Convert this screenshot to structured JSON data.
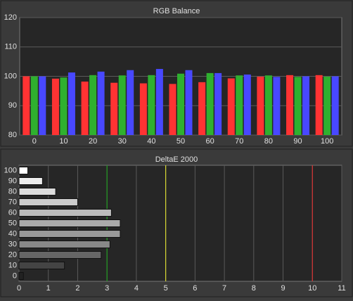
{
  "chart_data": [
    {
      "type": "grouped-bar",
      "title": "RGB Balance",
      "categories": [
        "0",
        "10",
        "20",
        "30",
        "40",
        "50",
        "60",
        "70",
        "80",
        "90",
        "100"
      ],
      "series": [
        {
          "color": "#ff3333",
          "values": [
            100,
            99.2,
            98.2,
            97.8,
            97.6,
            97.4,
            98.0,
            99.3,
            99.9,
            100.4,
            100.4
          ]
        },
        {
          "color": "#2fb02f",
          "values": [
            100,
            99.6,
            100.4,
            100.3,
            100.4,
            100.9,
            101.1,
            100.3,
            100.3,
            99.8,
            99.9
          ]
        },
        {
          "color": "#4848ff",
          "values": [
            100,
            101.3,
            101.6,
            102.1,
            102.5,
            102.1,
            101.1,
            100.6,
            99.8,
            100.0,
            100.0
          ]
        }
      ],
      "ylim": [
        80,
        120
      ],
      "yticks": [
        80,
        90,
        100,
        110,
        120
      ],
      "grid": true
    },
    {
      "type": "horizontal-bar",
      "title": "DeltaE 2000",
      "categories": [
        "100",
        "90",
        "80",
        "70",
        "60",
        "50",
        "40",
        "30",
        "20",
        "10",
        "0"
      ],
      "values": [
        0.3,
        0.8,
        1.25,
        2.0,
        3.15,
        3.45,
        3.45,
        3.1,
        2.8,
        1.55,
        0.15
      ],
      "colors": [
        "#ffffff",
        "#eeeeee",
        "#dddddd",
        "#cccccc",
        "#bbbbbb",
        "#aaaaaa",
        "#999999",
        "#888888",
        "#666666",
        "#444444",
        "#222222"
      ],
      "xlim": [
        0,
        11
      ],
      "xticks": [
        0,
        1,
        2,
        3,
        4,
        5,
        6,
        7,
        8,
        9,
        10,
        11
      ],
      "threshold_lines": [
        {
          "value": 3,
          "color": "#1f9a1f"
        },
        {
          "value": 5,
          "color": "#d8d832"
        },
        {
          "value": 10,
          "color": "#d83232"
        }
      ],
      "grid": true
    }
  ]
}
